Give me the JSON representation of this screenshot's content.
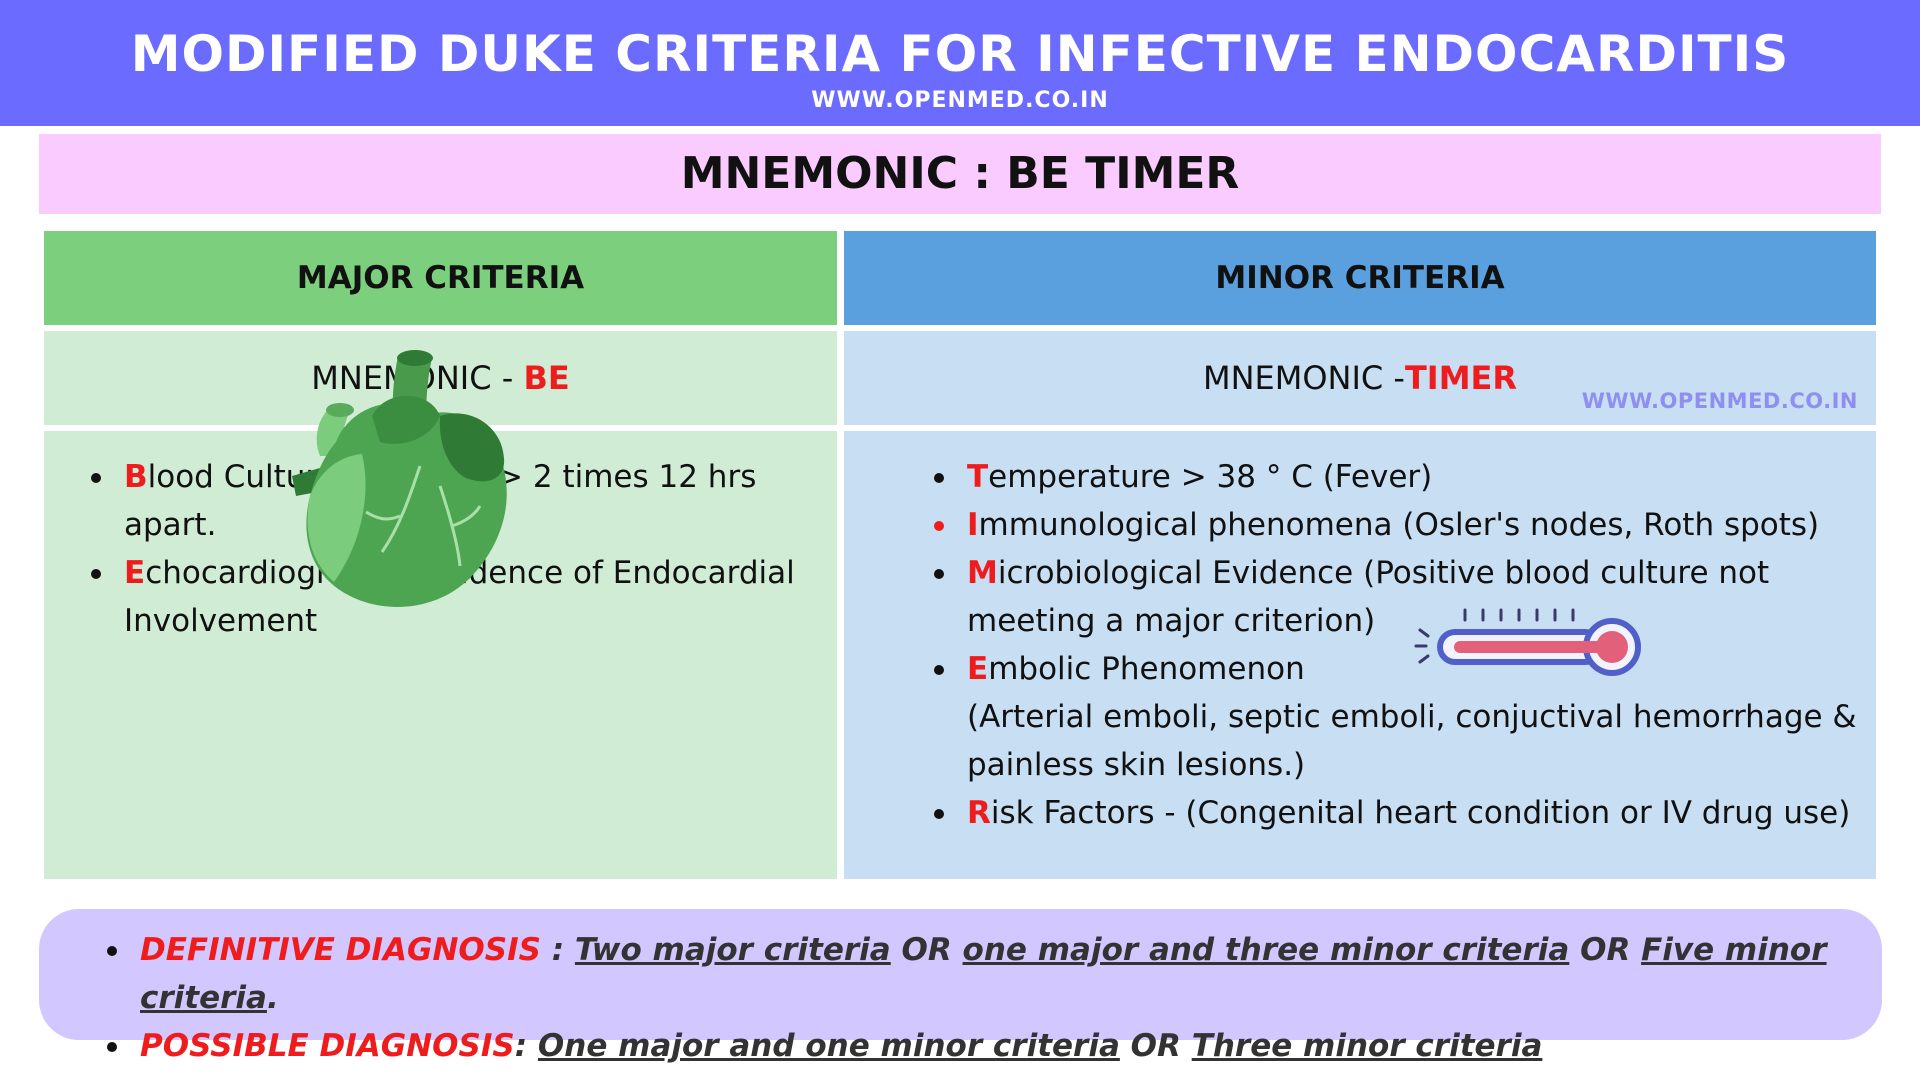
{
  "header": {
    "title": "MODIFIED DUKE CRITERIA FOR INFECTIVE ENDOCARDITIS",
    "website": "WWW.OPENMED.CO.IN"
  },
  "mnemonic": {
    "label": "MNEMONIC : ",
    "value": "BE TIMER"
  },
  "major": {
    "heading": "MAJOR CRITERIA",
    "mnemonic_label": "MNEMONIC - ",
    "mnemonic_value": "BE",
    "items": [
      {
        "initial": "B",
        "rest": "lood Culture POSITIVE > 2 times 12 hrs apart."
      },
      {
        "initial": "E",
        "rest": "chocardiographic evidence of Endocardial Involvement"
      }
    ]
  },
  "minor": {
    "heading": "MINOR CRITERIA",
    "mnemonic_label": "MNEMONIC -",
    "mnemonic_value": "TIMER",
    "watermark": "WWW.OPENMED.CO.IN",
    "items": [
      {
        "initial": "T",
        "rest": "emperature > 38 ° C (Fever)"
      },
      {
        "initial": "I",
        "rest": "mmunological phenomena (Osler's nodes, Roth spots)"
      },
      {
        "initial": "M",
        "rest": "icrobiological Evidence (Positive blood culture not meeting a major criterion)"
      },
      {
        "initial": "E",
        "rest": "mbolic Phenomenon",
        "rest2": "(Arterial emboli, septic emboli, conjuctival hemorrhage  & painless skin lesions.)"
      },
      {
        "initial": "R",
        "rest": "isk Factors -  (Congenital heart condition or IV drug use)"
      }
    ]
  },
  "diagnosis": {
    "definitive": {
      "label": "DEFINITIVE DIAGNOSIS ",
      "sep": ": ",
      "part1": "Two major criteria",
      "or1": " OR ",
      "part2": "one major and three minor criteria",
      "or2": " OR ",
      "part3": "Five minor criteria",
      "end": "."
    },
    "possible": {
      "label": "POSSIBLE DIAGNOSIS",
      "sep": ": ",
      "part1": "One major and one minor criteria",
      "or1": " OR ",
      "part2": "Three minor criteria"
    }
  },
  "icons": {
    "heart": "heart-illustration",
    "thermometer": "thermometer-icon"
  },
  "colors": {
    "header_bg": "#6b6cff",
    "mnemonic_bg": "#facbff",
    "major_head": "#7bcf7d",
    "major_body": "#d0ecd4",
    "minor_head": "#5ba0de",
    "minor_body": "#c8def2",
    "diagnosis_bg": "#d2c7ff",
    "accent_red": "#ee1c1c"
  }
}
